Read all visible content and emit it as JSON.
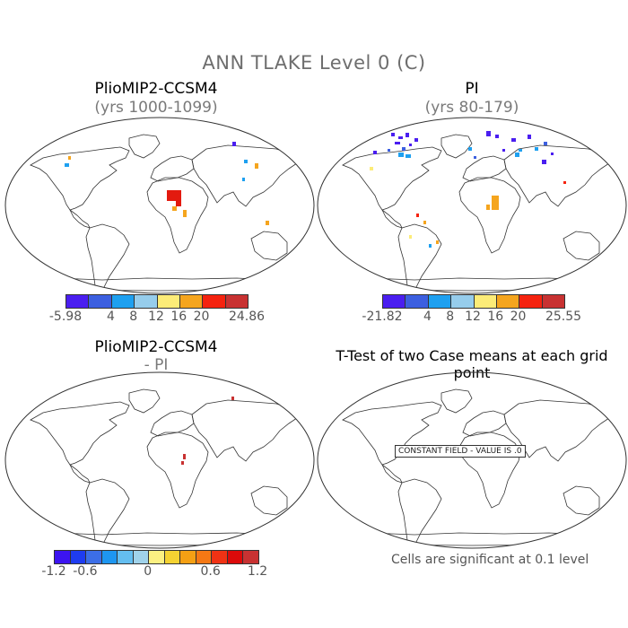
{
  "title": "ANN TLAKE Level 0 (C)",
  "panels": [
    {
      "title": "PlioMIP2-CCSM4",
      "subtitle": "(yrs 1000-1099)"
    },
    {
      "title": "PI",
      "subtitle": "(yrs 80-179)"
    },
    {
      "title": "PlioMIP2-CCSM4",
      "subtitle": "- PI"
    },
    {
      "title": "T-Test of two Case means at each grid point",
      "subtitle": ""
    }
  ],
  "colorbars": [
    {
      "colors": [
        "#4a1ef0",
        "#3c5fe0",
        "#1ea0f0",
        "#96cdec",
        "#fcec78",
        "#f5a51e",
        "#f5230f",
        "#c83232"
      ],
      "labels": [
        "-5.98",
        "4",
        "8",
        "12",
        "16",
        "20",
        "24.86"
      ]
    },
    {
      "colors": [
        "#4a1ef0",
        "#3c5fe0",
        "#1ea0f0",
        "#96cdec",
        "#fcec78",
        "#f5a51e",
        "#f5230f",
        "#c83232"
      ],
      "labels": [
        "-21.82",
        "4",
        "8",
        "12",
        "16",
        "20",
        "25.55"
      ]
    },
    {
      "colors": [
        "#3c14f0",
        "#1e3cf0",
        "#3c6ee6",
        "#1e96f0",
        "#64bef0",
        "#a0d2ea",
        "#fcf082",
        "#f5d232",
        "#f5a014",
        "#f57814",
        "#f03214",
        "#dc0a0a",
        "#c83232"
      ],
      "labels": [
        "-1.2",
        "-0.6",
        "0",
        "0.6",
        "1.2"
      ]
    }
  ],
  "ttest": {
    "message": "CONSTANT FIELD - VALUE IS .0"
  },
  "significance": "Cells are significant at 0.1 level"
}
